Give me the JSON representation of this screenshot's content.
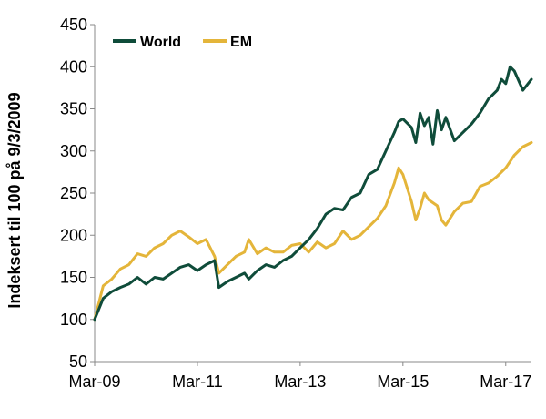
{
  "chart_data": {
    "type": "line",
    "title": "",
    "xlabel": "",
    "ylabel": "Indeksert til 100 på 9/3/2009",
    "ylim": [
      50,
      450
    ],
    "yticks": [
      50,
      100,
      150,
      200,
      250,
      300,
      350,
      400,
      450
    ],
    "xlim": [
      0,
      102
    ],
    "xticks": [
      {
        "pos": 0,
        "label": "Mar-09"
      },
      {
        "pos": 24,
        "label": "Mar-11"
      },
      {
        "pos": 48,
        "label": "Mar-13"
      },
      {
        "pos": 72,
        "label": "Mar-15"
      },
      {
        "pos": 96,
        "label": "Mar-17"
      }
    ],
    "x_unit": "months since Mar-09",
    "grid": false,
    "legend_position": "top-left",
    "series": [
      {
        "name": "World",
        "color": "#0f4c3a",
        "points": [
          [
            0,
            100
          ],
          [
            2,
            125
          ],
          [
            4,
            133
          ],
          [
            6,
            138
          ],
          [
            8,
            142
          ],
          [
            10,
            150
          ],
          [
            12,
            142
          ],
          [
            14,
            150
          ],
          [
            16,
            148
          ],
          [
            18,
            155
          ],
          [
            20,
            162
          ],
          [
            22,
            165
          ],
          [
            24,
            158
          ],
          [
            26,
            165
          ],
          [
            28,
            170
          ],
          [
            29,
            138
          ],
          [
            31,
            145
          ],
          [
            33,
            150
          ],
          [
            35,
            155
          ],
          [
            36,
            148
          ],
          [
            38,
            158
          ],
          [
            40,
            165
          ],
          [
            42,
            162
          ],
          [
            44,
            170
          ],
          [
            46,
            175
          ],
          [
            48,
            185
          ],
          [
            50,
            195
          ],
          [
            52,
            208
          ],
          [
            54,
            225
          ],
          [
            56,
            232
          ],
          [
            58,
            230
          ],
          [
            60,
            245
          ],
          [
            62,
            250
          ],
          [
            64,
            272
          ],
          [
            66,
            278
          ],
          [
            68,
            300
          ],
          [
            70,
            322
          ],
          [
            71,
            335
          ],
          [
            72,
            338
          ],
          [
            74,
            328
          ],
          [
            75,
            310
          ],
          [
            76,
            345
          ],
          [
            77,
            330
          ],
          [
            78,
            340
          ],
          [
            79,
            308
          ],
          [
            80,
            348
          ],
          [
            81,
            325
          ],
          [
            82,
            340
          ],
          [
            84,
            312
          ],
          [
            86,
            322
          ],
          [
            88,
            332
          ],
          [
            90,
            345
          ],
          [
            92,
            362
          ],
          [
            94,
            372
          ],
          [
            95,
            385
          ],
          [
            96,
            380
          ],
          [
            97,
            400
          ],
          [
            98,
            395
          ],
          [
            100,
            372
          ],
          [
            102,
            385
          ]
        ]
      },
      {
        "name": "EM",
        "color": "#e4b53a",
        "points": [
          [
            0,
            100
          ],
          [
            2,
            140
          ],
          [
            4,
            148
          ],
          [
            6,
            160
          ],
          [
            8,
            165
          ],
          [
            10,
            178
          ],
          [
            12,
            175
          ],
          [
            14,
            185
          ],
          [
            16,
            190
          ],
          [
            18,
            200
          ],
          [
            20,
            205
          ],
          [
            22,
            198
          ],
          [
            24,
            190
          ],
          [
            26,
            195
          ],
          [
            28,
            175
          ],
          [
            29,
            155
          ],
          [
            31,
            165
          ],
          [
            33,
            175
          ],
          [
            35,
            180
          ],
          [
            36,
            195
          ],
          [
            38,
            178
          ],
          [
            40,
            185
          ],
          [
            42,
            180
          ],
          [
            44,
            180
          ],
          [
            46,
            188
          ],
          [
            48,
            190
          ],
          [
            50,
            180
          ],
          [
            52,
            192
          ],
          [
            54,
            185
          ],
          [
            56,
            190
          ],
          [
            58,
            205
          ],
          [
            60,
            195
          ],
          [
            62,
            200
          ],
          [
            64,
            210
          ],
          [
            66,
            220
          ],
          [
            68,
            235
          ],
          [
            70,
            262
          ],
          [
            71,
            280
          ],
          [
            72,
            272
          ],
          [
            74,
            240
          ],
          [
            75,
            218
          ],
          [
            76,
            232
          ],
          [
            77,
            250
          ],
          [
            78,
            242
          ],
          [
            80,
            235
          ],
          [
            81,
            218
          ],
          [
            82,
            212
          ],
          [
            84,
            228
          ],
          [
            86,
            238
          ],
          [
            88,
            240
          ],
          [
            90,
            258
          ],
          [
            92,
            262
          ],
          [
            94,
            270
          ],
          [
            96,
            280
          ],
          [
            98,
            295
          ],
          [
            100,
            305
          ],
          [
            102,
            310
          ]
        ]
      }
    ]
  }
}
